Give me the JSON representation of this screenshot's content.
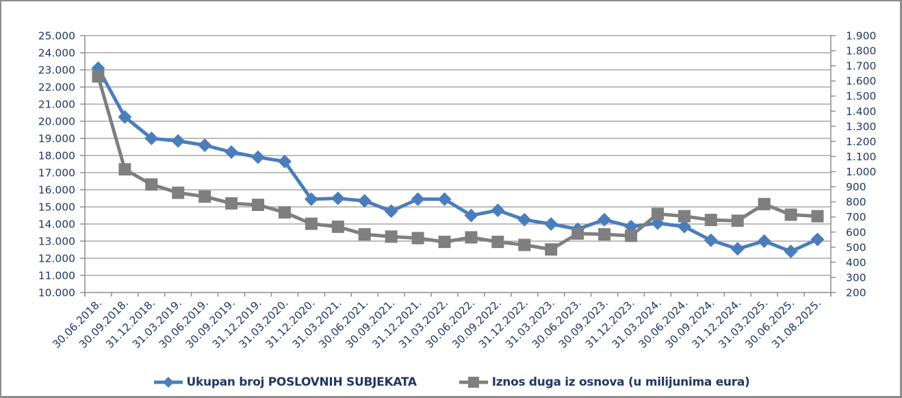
{
  "chart_data": {
    "type": "line",
    "title": "",
    "xlabel": "",
    "ylabel": "",
    "y2label": "",
    "ylim": [
      10000,
      25000
    ],
    "y2lim": [
      200,
      1900
    ],
    "grid": true,
    "legend_position": "bottom",
    "y_ticks": [
      "10.000",
      "11.000",
      "12.000",
      "13.000",
      "14.000",
      "15.000",
      "16.000",
      "17.000",
      "18.000",
      "19.000",
      "20.000",
      "21.000",
      "22.000",
      "23.000",
      "24.000",
      "25.000"
    ],
    "y2_ticks": [
      "200",
      "300",
      "400",
      "500",
      "600",
      "700",
      "800",
      "900",
      "1.000",
      "1.100",
      "1.200",
      "1.300",
      "1.400",
      "1.500",
      "1.600",
      "1.700",
      "1.800",
      "1.900"
    ],
    "categories": [
      "30.06.2018.",
      "30.09.2018.",
      "31.12.2018.",
      "31.03.2019.",
      "30.06.2019.",
      "30.09.2019.",
      "31.12.2019.",
      "31.03.2020.",
      "31.12.2020.",
      "31.03.2021.",
      "30.06.2021.",
      "30.09.2021.",
      "31.12.2021.",
      "31.03.2022.",
      "30.06.2022.",
      "30.09.2022.",
      "31.12.2022.",
      "31.03.2023.",
      "30.06.2023.",
      "30.09.2023.",
      "31.12.2023.",
      "31.03.2024.",
      "30.06.2024.",
      "30.09.2024.",
      "31.12.2024.",
      "31.03.2025.",
      "30.06.2025.",
      "31.08.2025."
    ],
    "series": [
      {
        "name": "Ukupan broj POSLOVNIH SUBJEKATA",
        "axis": "left",
        "color": "#4a7ebb",
        "marker": "diamond",
        "values": [
          23100,
          20250,
          19000,
          18850,
          18600,
          18200,
          17900,
          17650,
          15450,
          15500,
          15350,
          14750,
          15450,
          15450,
          14500,
          14800,
          14250,
          14000,
          13700,
          14250,
          13850,
          14050,
          13850,
          13050,
          12550,
          13000,
          12400,
          13100
        ]
      },
      {
        "name": "Iznos duga iz osnova (u milijunima eura)",
        "axis": "right",
        "color": "#7f7f7f",
        "marker": "square",
        "values": [
          1630,
          1015,
          915,
          860,
          835,
          790,
          780,
          730,
          655,
          635,
          585,
          570,
          560,
          535,
          565,
          535,
          515,
          485,
          590,
          585,
          575,
          720,
          705,
          680,
          675,
          785,
          715,
          705
        ]
      }
    ]
  },
  "legend": {
    "items": [
      {
        "label": "Ukupan broj POSLOVNIH SUBJEKATA",
        "color": "#4a7ebb"
      },
      {
        "label": "Iznos duga iz osnova (u milijunima eura)",
        "color": "#7f7f7f"
      }
    ]
  }
}
